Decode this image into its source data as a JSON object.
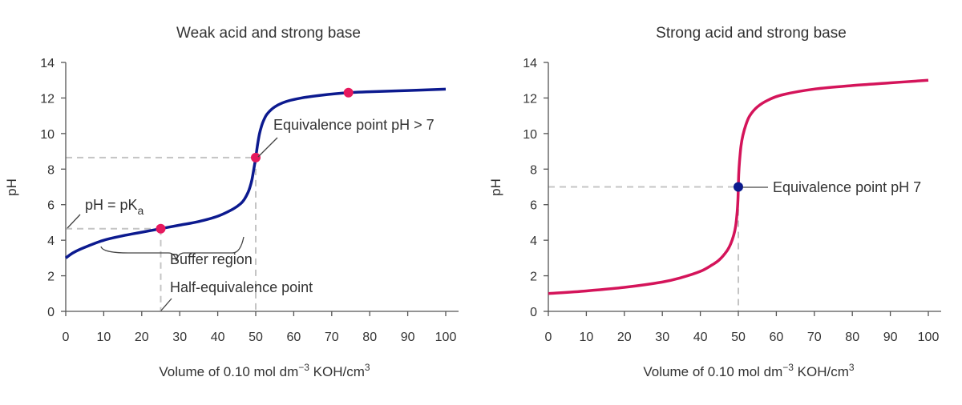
{
  "colors": {
    "weak_curve": "#0c1a8f",
    "strong_curve": "#d4145a",
    "weak_points": "#e6195e",
    "strong_point": "#0c1a8f",
    "guides": "#c4c4c4"
  },
  "chart_data": [
    {
      "type": "line",
      "title": "Weak acid and strong base",
      "xlabel": {
        "prefix": "Volume of 0.10 mol dm",
        "sup1": "−3",
        "middle": " KOH/cm",
        "sup2": "3"
      },
      "ylabel": "pH",
      "xlim": [
        0,
        100
      ],
      "ylim": [
        0,
        14
      ],
      "xticks": [
        0,
        10,
        20,
        30,
        40,
        50,
        60,
        70,
        80,
        90,
        100
      ],
      "yticks": [
        0,
        2,
        4,
        6,
        8,
        10,
        12,
        14
      ],
      "series": [
        {
          "x": [
            0,
            2,
            5,
            10,
            15,
            20,
            25,
            30,
            35,
            40,
            44,
            46,
            47,
            48,
            48.5,
            49,
            49.5,
            50,
            50.5,
            51,
            51.5,
            52,
            53,
            55,
            58,
            62,
            67,
            74.4,
            80,
            90,
            100
          ],
          "y": [
            3.0,
            3.3,
            3.6,
            4.0,
            4.25,
            4.45,
            4.65,
            4.85,
            5.05,
            5.35,
            5.75,
            6.05,
            6.3,
            6.7,
            7.0,
            7.4,
            8.0,
            8.65,
            9.4,
            10.0,
            10.4,
            10.7,
            11.1,
            11.5,
            11.8,
            12.0,
            12.15,
            12.3,
            12.35,
            12.42,
            12.5
          ]
        }
      ],
      "points": [
        {
          "x": 25,
          "y": 4.65
        },
        {
          "x": 50,
          "y": 8.65
        },
        {
          "x": 74.4,
          "y": 12.3
        }
      ],
      "guides": {
        "pka": 4.65,
        "half_eq_x": 25,
        "eq_x": 50,
        "eq_ph": 8.65
      },
      "annotations": {
        "pka_prefix": "pH = pK",
        "pka_sub": "a",
        "buffer": "Buffer region",
        "half_eq": "Half-equivalence point",
        "equivalence": "Equivalence point pH > 7"
      }
    },
    {
      "type": "line",
      "title": "Strong acid and strong base",
      "xlabel": {
        "prefix": "Volume of 0.10 mol dm",
        "sup1": "−3",
        "middle": " KOH/cm",
        "sup2": "3"
      },
      "ylabel": "pH",
      "xlim": [
        0,
        100
      ],
      "ylim": [
        0,
        14
      ],
      "xticks": [
        0,
        10,
        20,
        30,
        40,
        50,
        60,
        70,
        80,
        90,
        100
      ],
      "yticks": [
        0,
        2,
        4,
        6,
        8,
        10,
        12,
        14
      ],
      "series": [
        {
          "x": [
            0,
            10,
            20,
            30,
            35,
            40,
            43,
            45,
            47,
            48,
            48.8,
            49.3,
            49.7,
            49.9,
            50,
            50.1,
            50.3,
            50.7,
            51.2,
            52,
            53,
            55,
            58,
            62,
            70,
            80,
            90,
            100
          ],
          "y": [
            1.0,
            1.15,
            1.35,
            1.65,
            1.9,
            2.25,
            2.6,
            2.9,
            3.4,
            3.8,
            4.3,
            4.8,
            5.6,
            6.3,
            7.0,
            7.7,
            8.4,
            9.3,
            9.9,
            10.5,
            11.0,
            11.5,
            11.9,
            12.2,
            12.5,
            12.7,
            12.85,
            13.0
          ]
        }
      ],
      "points": [
        {
          "x": 50,
          "y": 7.0
        }
      ],
      "guides": {
        "eq_x": 50,
        "eq_ph": 7.0
      },
      "annotations": {
        "equivalence": "Equivalence point pH 7"
      }
    }
  ]
}
